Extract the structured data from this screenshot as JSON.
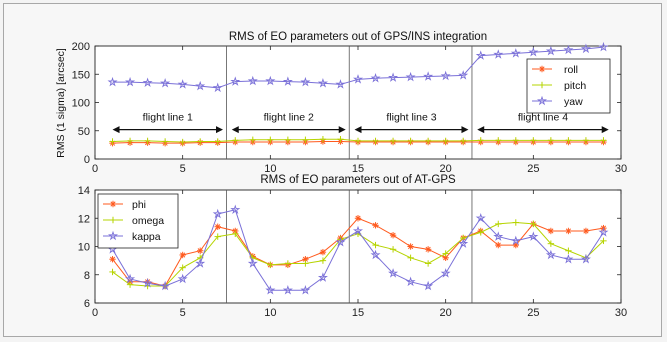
{
  "chart_data": [
    {
      "type": "line",
      "title": "RMS of EO parameters out of GPS/INS integration",
      "xlabel": "",
      "ylabel": "RMS (1 sigma) [arcsec]",
      "xlim": [
        0,
        30
      ],
      "ylim": [
        0,
        200
      ],
      "xticks": [
        0,
        5,
        10,
        15,
        20,
        25,
        30
      ],
      "yticks": [
        0,
        50,
        100,
        150,
        200
      ],
      "legend_position": "right",
      "x": [
        1,
        2,
        3,
        4,
        5,
        6,
        7,
        8,
        9,
        10,
        11,
        12,
        13,
        14,
        15,
        16,
        17,
        18,
        19,
        20,
        21,
        22,
        23,
        24,
        25,
        26,
        27,
        28,
        29
      ],
      "series": [
        {
          "name": "roll",
          "color": "#ff5a1e",
          "marker": "asterisk",
          "values": [
            28,
            29,
            29,
            28,
            28,
            29,
            29,
            30,
            30,
            30,
            30,
            30,
            31,
            31,
            30,
            30,
            30,
            30,
            30,
            30,
            30,
            30,
            30,
            30,
            30,
            30,
            30,
            30,
            30
          ]
        },
        {
          "name": "pitch",
          "color": "#b6d400",
          "marker": "plus",
          "values": [
            31,
            32,
            32,
            31,
            30,
            31,
            31,
            33,
            34,
            34,
            34,
            34,
            35,
            35,
            32,
            32,
            32,
            32,
            32,
            32,
            32,
            33,
            33,
            33,
            33,
            33,
            33,
            33,
            33
          ]
        },
        {
          "name": "yaw",
          "color": "#7a70d8",
          "marker": "star",
          "values": [
            136,
            136,
            135,
            134,
            132,
            129,
            126,
            137,
            138,
            138,
            137,
            136,
            134,
            132,
            141,
            143,
            144,
            145,
            146,
            147,
            148,
            183,
            185,
            187,
            189,
            191,
            193,
            195,
            198
          ]
        }
      ],
      "separators": [
        7.5,
        14.5,
        21.5
      ],
      "annotations": [
        {
          "text": "flight line 1",
          "from": 1,
          "to": 7.3,
          "y": 52
        },
        {
          "text": "flight line 2",
          "from": 7.8,
          "to": 14.3,
          "y": 52
        },
        {
          "text": "flight line 3",
          "from": 14.8,
          "to": 21.3,
          "y": 52
        },
        {
          "text": "flight line 4",
          "from": 21.8,
          "to": 29.3,
          "y": 52
        }
      ]
    },
    {
      "type": "line",
      "title": "RMS of EO parameters out of AT-GPS",
      "xlabel": "",
      "ylabel": "",
      "xlim": [
        0,
        30
      ],
      "ylim": [
        6,
        14
      ],
      "xticks": [
        0,
        5,
        10,
        15,
        20,
        25,
        30
      ],
      "yticks": [
        6,
        8,
        10,
        12,
        14
      ],
      "legend_position": "top-left",
      "x": [
        1,
        2,
        3,
        4,
        5,
        6,
        7,
        8,
        9,
        10,
        11,
        12,
        13,
        14,
        15,
        16,
        17,
        18,
        19,
        20,
        21,
        22,
        23,
        24,
        25,
        26,
        27,
        28,
        29
      ],
      "series": [
        {
          "name": "phi",
          "color": "#ff5a1e",
          "marker": "asterisk",
          "values": [
            9.1,
            7.5,
            7.5,
            7.2,
            9.4,
            9.7,
            11.4,
            11.1,
            9.3,
            8.7,
            8.7,
            9.1,
            9.6,
            10.6,
            12.0,
            11.5,
            10.8,
            10.0,
            9.8,
            9.2,
            10.6,
            11.1,
            10.1,
            10.1,
            11.6,
            11.1,
            11.1,
            11.1,
            11.3
          ]
        },
        {
          "name": "omega",
          "color": "#b6d400",
          "marker": "plus",
          "values": [
            8.2,
            7.3,
            7.2,
            7.2,
            8.5,
            9.2,
            10.7,
            10.9,
            9.2,
            8.7,
            8.8,
            8.8,
            9.0,
            10.5,
            10.9,
            10.1,
            9.8,
            9.2,
            8.8,
            9.5,
            10.6,
            11.0,
            11.6,
            11.7,
            11.6,
            10.2,
            9.7,
            9.2,
            10.4
          ]
        },
        {
          "name": "kappa",
          "color": "#7a70d8",
          "marker": "star",
          "values": [
            9.8,
            7.7,
            7.4,
            7.2,
            7.7,
            8.8,
            12.3,
            12.6,
            8.8,
            6.9,
            6.9,
            6.9,
            7.8,
            10.3,
            11.1,
            9.4,
            8.1,
            7.5,
            7.2,
            8.1,
            10.2,
            12.0,
            10.7,
            10.4,
            10.7,
            9.4,
            9.1,
            9.1,
            11.0
          ]
        }
      ],
      "separators": [
        7.5,
        14.5,
        21.5
      ]
    }
  ]
}
